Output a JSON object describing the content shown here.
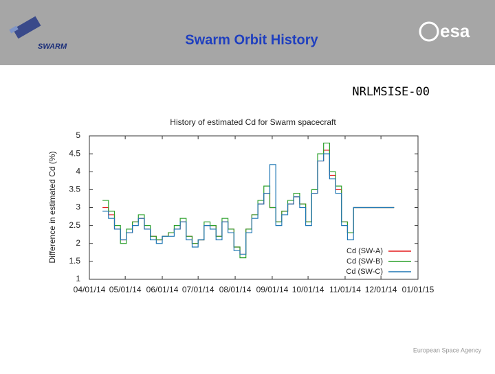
{
  "header": {
    "title": "Swarm Orbit History",
    "logo_left": "SWARM",
    "logo_right": "esa"
  },
  "model": "NRLMSISE-00",
  "footer": "European Space Agency",
  "chart_data": {
    "type": "line",
    "title": "History of estimated Cd for Swarm spacecraft",
    "ylabel": "Difference in estimated Cd (%)",
    "x": [
      "2014-04-12",
      "2014-04-17",
      "2014-04-22",
      "2014-04-27",
      "2014-05-02",
      "2014-05-07",
      "2014-05-12",
      "2014-05-17",
      "2014-05-22",
      "2014-05-27",
      "2014-06-01",
      "2014-06-06",
      "2014-06-11",
      "2014-06-16",
      "2014-06-21",
      "2014-06-26",
      "2014-07-01",
      "2014-07-06",
      "2014-07-11",
      "2014-07-16",
      "2014-07-21",
      "2014-07-26",
      "2014-07-31",
      "2014-08-05",
      "2014-08-10",
      "2014-08-15",
      "2014-08-20",
      "2014-08-25",
      "2014-08-30",
      "2014-09-04",
      "2014-09-09",
      "2014-09-14",
      "2014-09-19",
      "2014-09-24",
      "2014-09-29",
      "2014-10-04",
      "2014-10-09",
      "2014-10-14",
      "2014-10-19",
      "2014-10-24",
      "2014-10-29",
      "2014-11-03",
      "2014-11-08",
      "2014-11-13",
      "2014-11-18",
      "2014-11-23",
      "2014-11-28",
      "2014-12-03",
      "2014-12-08",
      "2014-12-12"
    ],
    "series": [
      {
        "name": "Cd (SW-A)",
        "color": "#e41a1c",
        "values": [
          3.0,
          2.8,
          2.4,
          2.1,
          2.3,
          2.6,
          2.7,
          2.4,
          2.2,
          2.1,
          2.2,
          2.3,
          2.4,
          2.6,
          2.2,
          2.0,
          2.1,
          2.5,
          2.5,
          2.2,
          2.6,
          2.4,
          1.9,
          1.7,
          2.4,
          2.8,
          3.1,
          3.4,
          3.0,
          2.6,
          2.9,
          3.1,
          3.3,
          3.1,
          2.6,
          3.4,
          4.3,
          4.6,
          3.9,
          3.5,
          2.6,
          2.3,
          3.0,
          3.0,
          3.0,
          3.0,
          3.0,
          3.0,
          3.0,
          3.0
        ]
      },
      {
        "name": "Cd (SW-B)",
        "color": "#2ca02c",
        "values": [
          3.2,
          2.9,
          2.5,
          2.0,
          2.4,
          2.6,
          2.8,
          2.5,
          2.2,
          2.1,
          2.2,
          2.3,
          2.5,
          2.7,
          2.2,
          2.0,
          2.1,
          2.6,
          2.5,
          2.2,
          2.7,
          2.4,
          1.9,
          1.6,
          2.4,
          2.8,
          3.2,
          3.6,
          3.0,
          2.6,
          2.9,
          3.2,
          3.4,
          3.1,
          2.6,
          3.5,
          4.5,
          4.8,
          4.0,
          3.6,
          2.6,
          2.3,
          3.0,
          3.0,
          3.0,
          3.0,
          3.0,
          3.0,
          3.0,
          3.0
        ]
      },
      {
        "name": "Cd (SW-C)",
        "color": "#1f77b4",
        "values": [
          2.9,
          2.7,
          2.4,
          2.1,
          2.3,
          2.5,
          2.7,
          2.4,
          2.1,
          2.0,
          2.2,
          2.2,
          2.4,
          2.6,
          2.1,
          1.9,
          2.1,
          2.5,
          2.4,
          2.1,
          2.6,
          2.3,
          1.8,
          1.7,
          2.3,
          2.7,
          3.1,
          3.4,
          4.2,
          2.5,
          2.8,
          3.1,
          3.3,
          3.0,
          2.5,
          3.4,
          4.3,
          4.5,
          3.8,
          3.4,
          2.5,
          2.1,
          3.0,
          3.0,
          3.0,
          3.0,
          3.0,
          3.0,
          3.0,
          3.0
        ]
      }
    ],
    "xlim": [
      "2014-04-01",
      "2015-01-01"
    ],
    "xticks": [
      {
        "value": "2014-04-01",
        "label": "04/01/14"
      },
      {
        "value": "2014-05-01",
        "label": "05/01/14"
      },
      {
        "value": "2014-06-01",
        "label": "06/01/14"
      },
      {
        "value": "2014-07-01",
        "label": "07/01/14"
      },
      {
        "value": "2014-08-01",
        "label": "08/01/14"
      },
      {
        "value": "2014-09-01",
        "label": "09/01/14"
      },
      {
        "value": "2014-10-01",
        "label": "10/01/14"
      },
      {
        "value": "2014-11-01",
        "label": "11/01/14"
      },
      {
        "value": "2014-12-01",
        "label": "12/01/14"
      },
      {
        "value": "2015-01-01",
        "label": "01/01/15"
      }
    ],
    "ylim": [
      1,
      5
    ],
    "yticks": [
      1,
      1.5,
      2,
      2.5,
      3,
      3.5,
      4,
      4.5,
      5
    ],
    "legend": "lower right"
  }
}
